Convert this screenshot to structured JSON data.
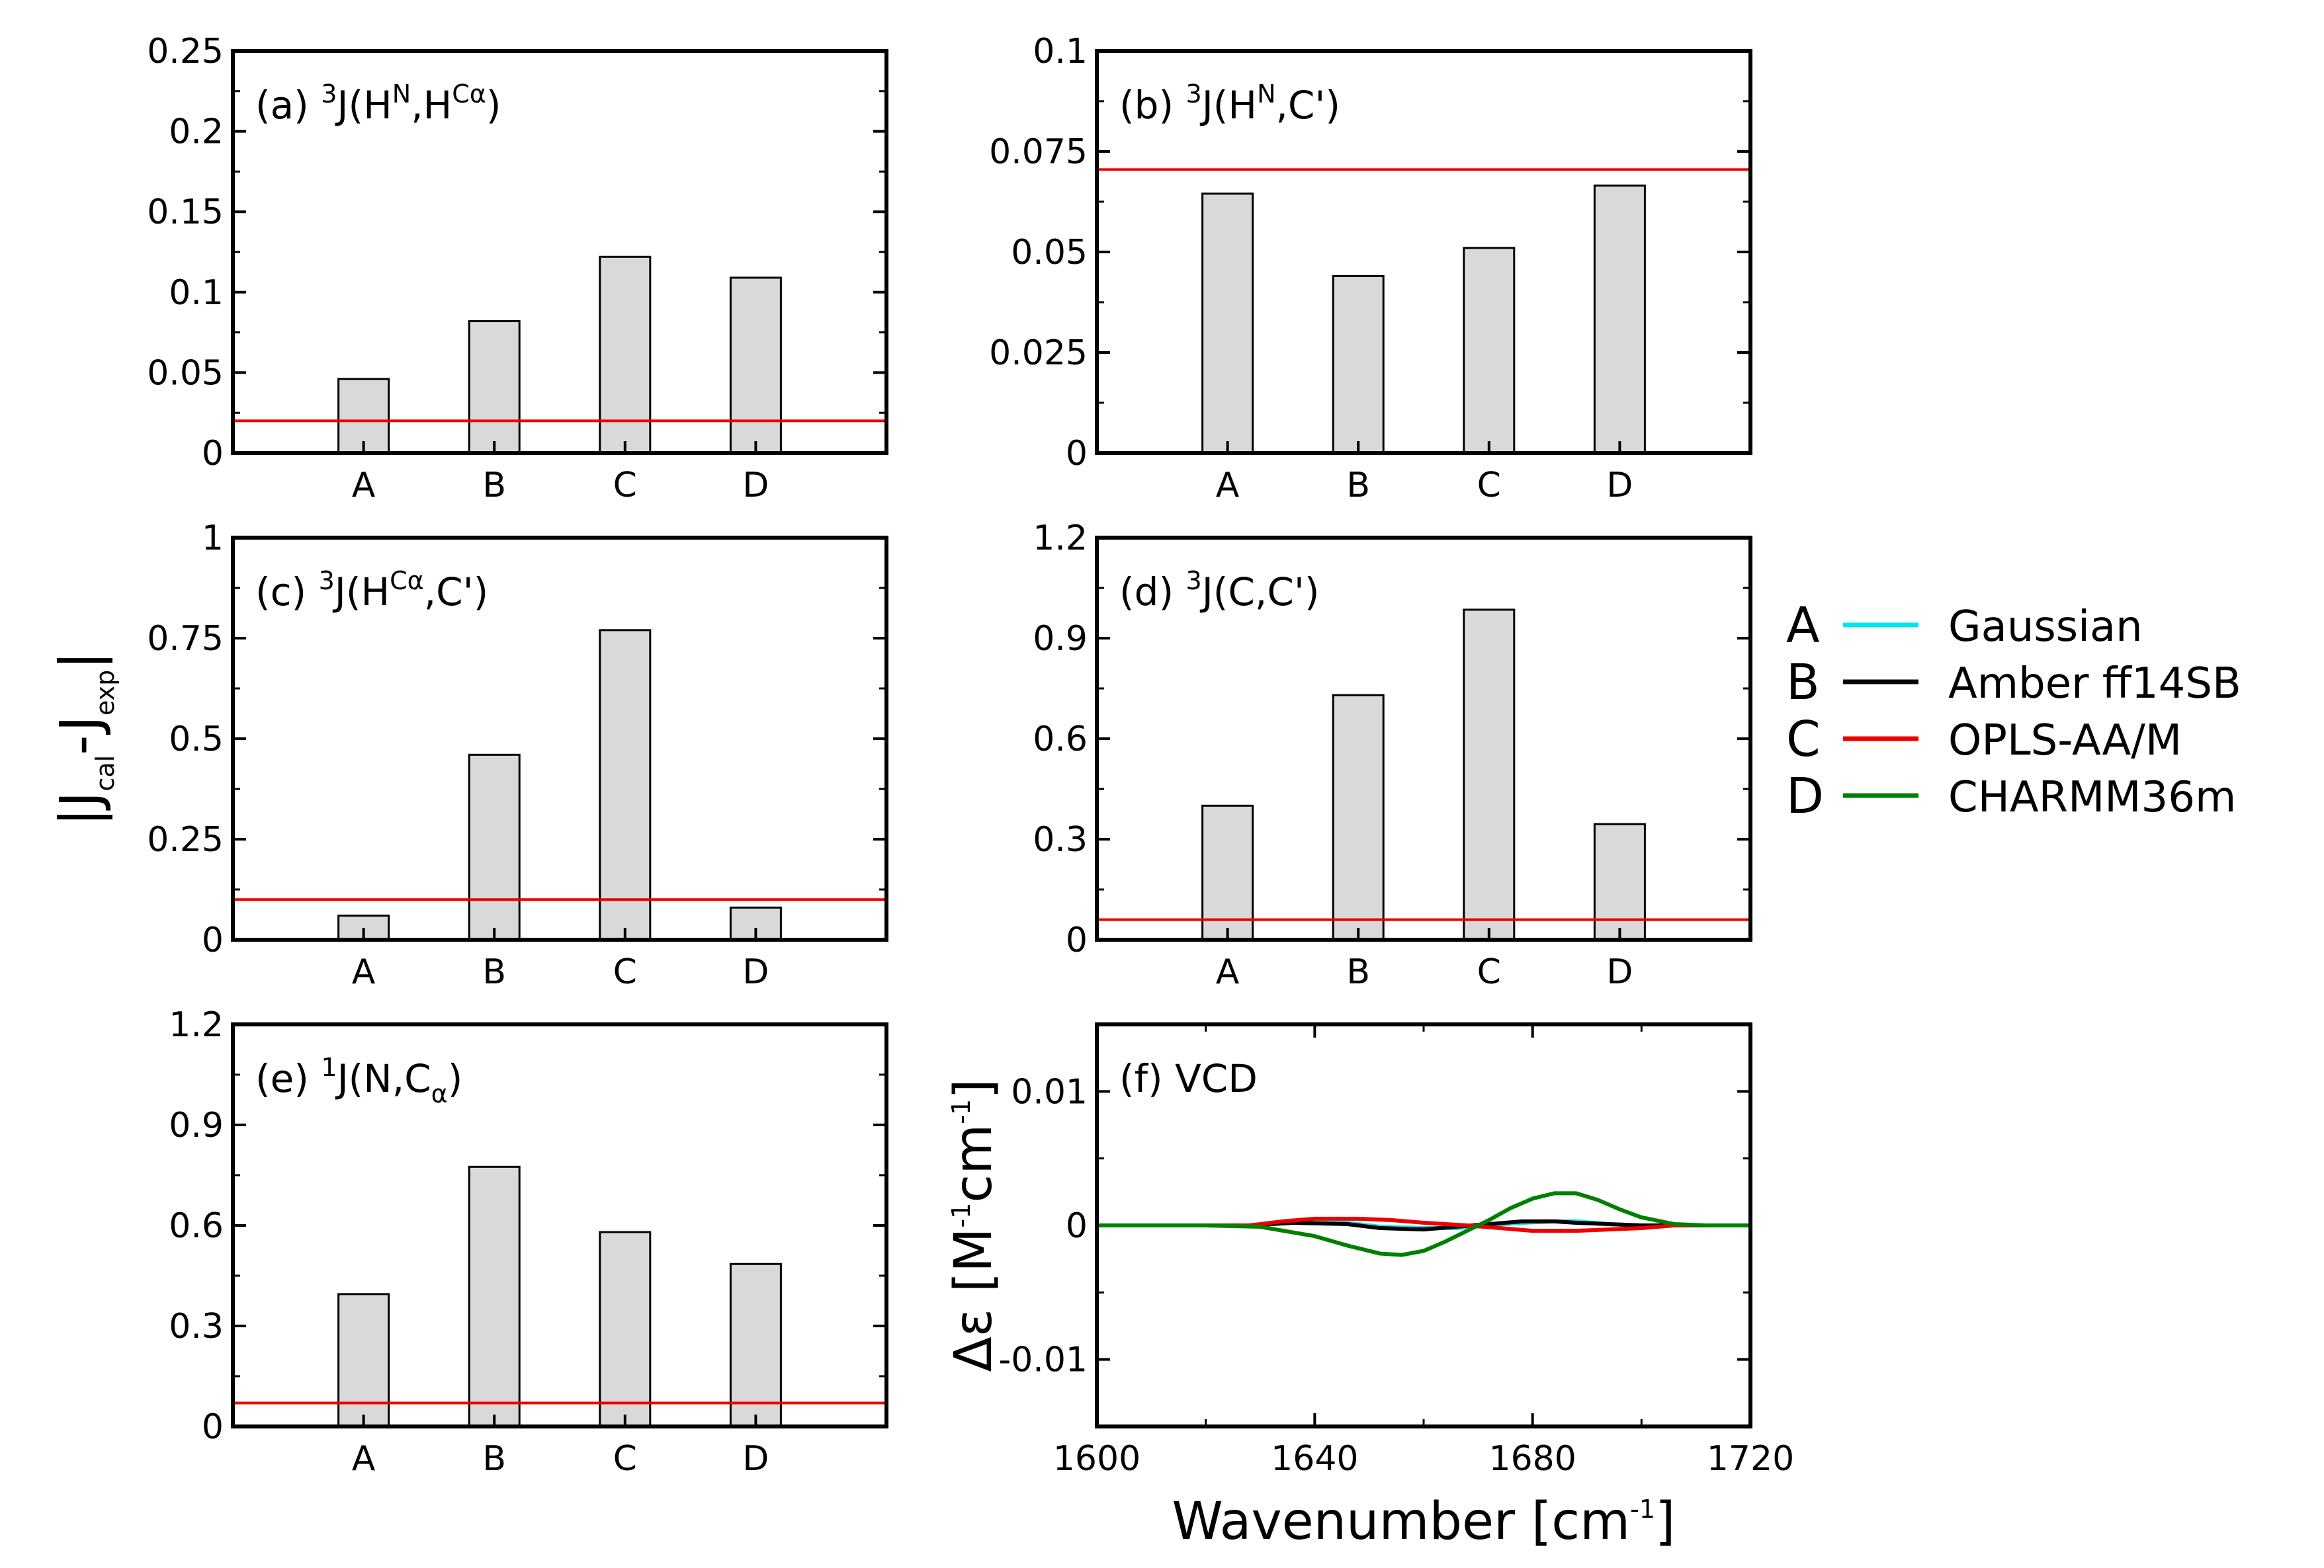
{
  "figure": {
    "ylabel": {
      "main": "|J",
      "sub1": "cal",
      "mid": "-J",
      "sub2": "exp",
      "end": "|"
    }
  },
  "chart_data": [
    {
      "type": "bar",
      "panel": "a",
      "title": {
        "prefix": "(a) ",
        "sup1": "3",
        "body1": "J(H",
        "sup2": "N",
        "body2": ",H",
        "sup3": "Cα",
        "body3": ")"
      },
      "categories": [
        "A",
        "B",
        "C",
        "D"
      ],
      "values": [
        0.046,
        0.082,
        0.122,
        0.109
      ],
      "reference": 0.02,
      "ylim": [
        0,
        0.25
      ],
      "yticks": [
        "0",
        "0.05",
        "0.1",
        "0.15",
        "0.2",
        "0.25"
      ]
    },
    {
      "type": "bar",
      "panel": "b",
      "title": {
        "prefix": "(b) ",
        "sup1": "3",
        "body1": "J(H",
        "sup2": "N",
        "body2": ",C')"
      },
      "categories": [
        "A",
        "B",
        "C",
        "D"
      ],
      "values": [
        0.0645,
        0.044,
        0.051,
        0.0665
      ],
      "reference": 0.0705,
      "ylim": [
        0,
        0.1
      ],
      "yticks": [
        "0",
        "0.025",
        "0.05",
        "0.075",
        "0.1"
      ]
    },
    {
      "type": "bar",
      "panel": "c",
      "title": {
        "prefix": "(c) ",
        "sup1": "3",
        "body1": "J(H",
        "sup2": "Cα",
        "body2": ",C')"
      },
      "categories": [
        "A",
        "B",
        "C",
        "D"
      ],
      "values": [
        0.06,
        0.46,
        0.77,
        0.08
      ],
      "reference": 0.1,
      "ylim": [
        0,
        1
      ],
      "yticks": [
        "0",
        "0.25",
        "0.5",
        "0.75",
        "1"
      ]
    },
    {
      "type": "bar",
      "panel": "d",
      "title": {
        "prefix": "(d) ",
        "sup1": "3",
        "body1": "J(C,C')"
      },
      "categories": [
        "A",
        "B",
        "C",
        "D"
      ],
      "values": [
        0.4,
        0.73,
        0.985,
        0.345
      ],
      "reference": 0.06,
      "ylim": [
        0,
        1.2
      ],
      "yticks": [
        "0",
        "0.3",
        "0.6",
        "0.9",
        "1.2"
      ]
    },
    {
      "type": "bar",
      "panel": "e",
      "title": {
        "prefix": "(e) ",
        "sup1": "1",
        "body1": "J(N,C",
        "sub1": "α",
        "body2": ")"
      },
      "categories": [
        "A",
        "B",
        "C",
        "D"
      ],
      "values": [
        0.395,
        0.775,
        0.58,
        0.485
      ],
      "reference": 0.07,
      "ylim": [
        0,
        1.2
      ],
      "yticks": [
        "0",
        "0.3",
        "0.6",
        "0.9",
        "1.2"
      ]
    },
    {
      "type": "line",
      "panel": "f",
      "title": {
        "prefix": "(f) ",
        "body1": "VCD"
      },
      "xlim": [
        1600,
        1720
      ],
      "ylim": [
        -0.015,
        0.015
      ],
      "xticks": [
        "1600",
        "1640",
        "1680",
        "1720"
      ],
      "yticks": [
        "-0.01",
        "0",
        "0.01"
      ],
      "xlabel": {
        "main": "Wavenumber [cm",
        "sup": "-1",
        "end": "]"
      },
      "ylabel": {
        "main": "Δε [M",
        "sup1": "-1",
        "mid": "cm",
        "sup2": "-1",
        "end": "]"
      },
      "series": [
        {
          "name": "Gaussian",
          "letter": "A",
          "color": "#00e5ee",
          "x": [
            1600,
            1628,
            1636,
            1646,
            1652,
            1660,
            1666,
            1672,
            1678,
            1684,
            1688,
            1694,
            1700,
            1706,
            1720
          ],
          "y": [
            0,
            0,
            0.0002,
            0.0002,
            -0.0001,
            -0.0002,
            -0.0002,
            0,
            0.0002,
            0.0003,
            0.0003,
            0.0001,
            0,
            0,
            0
          ]
        },
        {
          "name": "Amber ff14SB",
          "letter": "B",
          "color": "#000000",
          "x": [
            1600,
            1628,
            1636,
            1646,
            1652,
            1660,
            1666,
            1672,
            1678,
            1684,
            1688,
            1694,
            1700,
            1706,
            1720
          ],
          "y": [
            0,
            0,
            0.0002,
            0.0001,
            -0.0002,
            -0.0003,
            -0.0001,
            0.0001,
            0.0003,
            0.0003,
            0.0002,
            0.0001,
            0,
            0,
            0
          ]
        },
        {
          "name": "OPLS-AA/M",
          "letter": "C",
          "color": "#ee0000",
          "x": [
            1600,
            1628,
            1634,
            1640,
            1648,
            1654,
            1660,
            1668,
            1674,
            1680,
            1688,
            1694,
            1700,
            1706,
            1710,
            1720
          ],
          "y": [
            0,
            0,
            0.0003,
            0.0005,
            0.0005,
            0.0004,
            0.0002,
            0,
            -0.0002,
            -0.0004,
            -0.0004,
            -0.0003,
            -0.0002,
            0,
            0,
            0
          ]
        },
        {
          "name": "CHARMM36m",
          "letter": "D",
          "color": "#008000",
          "x": [
            1600,
            1620,
            1630,
            1640,
            1646,
            1652,
            1656,
            1660,
            1664,
            1668,
            1672,
            1676,
            1680,
            1684,
            1688,
            1692,
            1696,
            1700,
            1706,
            1712,
            1720
          ],
          "y": [
            0,
            0,
            -0.0001,
            -0.0008,
            -0.0015,
            -0.0021,
            -0.0022,
            -0.0019,
            -0.0012,
            -0.0004,
            0.0004,
            0.0013,
            0.002,
            0.0024,
            0.0024,
            0.0019,
            0.0012,
            0.0006,
            0.0001,
            0,
            0
          ]
        }
      ]
    }
  ],
  "legend": {
    "items": [
      {
        "letter": "A",
        "label": "Gaussian",
        "color": "#00e5ee"
      },
      {
        "letter": "B",
        "label": "Amber ff14SB",
        "color": "#000000"
      },
      {
        "letter": "C",
        "label": "OPLS-AA/M",
        "color": "#ee0000"
      },
      {
        "letter": "D",
        "label": "CHARMM36m",
        "color": "#008000"
      }
    ]
  },
  "colors": {
    "bar_fill": "#d9d9d9",
    "reference_line": "#ee0000",
    "axis": "#000000"
  }
}
